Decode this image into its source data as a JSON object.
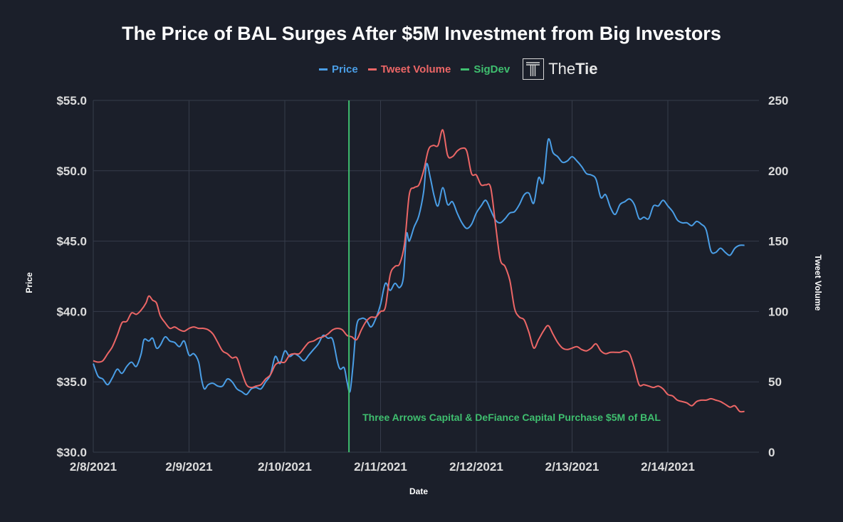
{
  "chart_data": {
    "type": "line",
    "title": "The Price of BAL Surges After $5M Investment from Big Investors",
    "xlabel": "Date",
    "ylabel": "Price",
    "y2label": "Tweet Volume",
    "x_ticks": [
      "2/8/2021",
      "2/9/2021",
      "2/10/2021",
      "2/11/2021",
      "2/12/2021",
      "2/13/2021",
      "2/14/2021"
    ],
    "x_range": [
      0,
      6.9
    ],
    "y_ticks": [
      "$30.0",
      "$35.0",
      "$40.0",
      "$45.0",
      "$50.0",
      "$55.0"
    ],
    "ylim": [
      30,
      55
    ],
    "y2_ticks": [
      "0",
      "50",
      "100",
      "150",
      "200",
      "250"
    ],
    "y2lim": [
      0,
      250
    ],
    "grid": true,
    "legend_placement": "top-center",
    "series": [
      {
        "name": "Price",
        "axis": "left",
        "color": "#4a9ee6",
        "points": [
          [
            0.0,
            36.3
          ],
          [
            0.05,
            35.4
          ],
          [
            0.1,
            35.2
          ],
          [
            0.15,
            34.8
          ],
          [
            0.2,
            35.3
          ],
          [
            0.25,
            35.9
          ],
          [
            0.3,
            35.6
          ],
          [
            0.35,
            36.1
          ],
          [
            0.4,
            36.4
          ],
          [
            0.45,
            36.1
          ],
          [
            0.5,
            37.0
          ],
          [
            0.53,
            38.0
          ],
          [
            0.58,
            37.9
          ],
          [
            0.62,
            38.1
          ],
          [
            0.66,
            37.4
          ],
          [
            0.7,
            37.6
          ],
          [
            0.75,
            38.2
          ],
          [
            0.8,
            37.9
          ],
          [
            0.85,
            37.8
          ],
          [
            0.9,
            37.5
          ],
          [
            0.95,
            37.9
          ],
          [
            1.0,
            36.9
          ],
          [
            1.05,
            37.0
          ],
          [
            1.1,
            36.4
          ],
          [
            1.13,
            35.2
          ],
          [
            1.16,
            34.5
          ],
          [
            1.2,
            34.8
          ],
          [
            1.25,
            34.9
          ],
          [
            1.3,
            34.7
          ],
          [
            1.35,
            34.7
          ],
          [
            1.4,
            35.2
          ],
          [
            1.45,
            35.0
          ],
          [
            1.5,
            34.5
          ],
          [
            1.55,
            34.3
          ],
          [
            1.6,
            34.1
          ],
          [
            1.65,
            34.5
          ],
          [
            1.7,
            34.6
          ],
          [
            1.75,
            34.5
          ],
          [
            1.8,
            35.0
          ],
          [
            1.85,
            35.5
          ],
          [
            1.9,
            36.8
          ],
          [
            1.95,
            36.3
          ],
          [
            2.0,
            37.2
          ],
          [
            2.05,
            36.8
          ],
          [
            2.1,
            37.0
          ],
          [
            2.15,
            36.8
          ],
          [
            2.2,
            36.5
          ],
          [
            2.25,
            36.9
          ],
          [
            2.3,
            37.3
          ],
          [
            2.35,
            37.7
          ],
          [
            2.4,
            38.3
          ],
          [
            2.45,
            38.1
          ],
          [
            2.5,
            38.0
          ],
          [
            2.55,
            36.4
          ],
          [
            2.58,
            35.9
          ],
          [
            2.62,
            36.0
          ],
          [
            2.65,
            35.0
          ],
          [
            2.68,
            34.3
          ],
          [
            2.71,
            36.0
          ],
          [
            2.75,
            39.0
          ],
          [
            2.8,
            39.5
          ],
          [
            2.85,
            39.4
          ],
          [
            2.9,
            38.9
          ],
          [
            2.95,
            39.5
          ],
          [
            3.0,
            40.5
          ],
          [
            3.05,
            42.0
          ],
          [
            3.1,
            41.5
          ],
          [
            3.15,
            42.0
          ],
          [
            3.2,
            41.7
          ],
          [
            3.24,
            42.5
          ],
          [
            3.27,
            45.5
          ],
          [
            3.3,
            45.0
          ],
          [
            3.35,
            46.0
          ],
          [
            3.4,
            46.8
          ],
          [
            3.45,
            48.5
          ],
          [
            3.48,
            50.5
          ],
          [
            3.52,
            49.5
          ],
          [
            3.56,
            48.2
          ],
          [
            3.6,
            47.5
          ],
          [
            3.65,
            48.8
          ],
          [
            3.7,
            47.6
          ],
          [
            3.75,
            47.8
          ],
          [
            3.8,
            47.0
          ],
          [
            3.85,
            46.3
          ],
          [
            3.9,
            45.9
          ],
          [
            3.95,
            46.2
          ],
          [
            4.0,
            47.0
          ],
          [
            4.05,
            47.5
          ],
          [
            4.1,
            47.9
          ],
          [
            4.15,
            47.2
          ],
          [
            4.2,
            46.5
          ],
          [
            4.25,
            46.3
          ],
          [
            4.3,
            46.6
          ],
          [
            4.35,
            47.0
          ],
          [
            4.4,
            47.1
          ],
          [
            4.45,
            47.6
          ],
          [
            4.5,
            48.3
          ],
          [
            4.55,
            48.4
          ],
          [
            4.6,
            47.7
          ],
          [
            4.65,
            49.5
          ],
          [
            4.7,
            49.2
          ],
          [
            4.75,
            52.2
          ],
          [
            4.8,
            51.3
          ],
          [
            4.85,
            51.0
          ],
          [
            4.9,
            50.6
          ],
          [
            4.95,
            50.7
          ],
          [
            5.0,
            51.0
          ],
          [
            5.05,
            50.7
          ],
          [
            5.1,
            50.3
          ],
          [
            5.15,
            49.8
          ],
          [
            5.2,
            49.7
          ],
          [
            5.25,
            49.4
          ],
          [
            5.3,
            48.1
          ],
          [
            5.35,
            48.3
          ],
          [
            5.4,
            47.4
          ],
          [
            5.45,
            46.9
          ],
          [
            5.5,
            47.6
          ],
          [
            5.55,
            47.8
          ],
          [
            5.6,
            48.0
          ],
          [
            5.65,
            47.6
          ],
          [
            5.7,
            46.6
          ],
          [
            5.75,
            46.7
          ],
          [
            5.8,
            46.6
          ],
          [
            5.85,
            47.5
          ],
          [
            5.9,
            47.5
          ],
          [
            5.95,
            47.9
          ],
          [
            6.0,
            47.5
          ],
          [
            6.05,
            47.1
          ],
          [
            6.1,
            46.5
          ],
          [
            6.15,
            46.3
          ],
          [
            6.2,
            46.3
          ],
          [
            6.25,
            46.1
          ],
          [
            6.3,
            46.4
          ],
          [
            6.35,
            46.2
          ],
          [
            6.4,
            45.8
          ],
          [
            6.45,
            44.3
          ],
          [
            6.5,
            44.2
          ],
          [
            6.55,
            44.5
          ],
          [
            6.6,
            44.2
          ],
          [
            6.65,
            44.0
          ],
          [
            6.7,
            44.5
          ],
          [
            6.75,
            44.7
          ],
          [
            6.8,
            44.7
          ]
        ]
      },
      {
        "name": "Tweet Volume",
        "axis": "right",
        "color": "#ec6666",
        "points": [
          [
            0.0,
            65
          ],
          [
            0.05,
            64
          ],
          [
            0.1,
            65
          ],
          [
            0.15,
            70
          ],
          [
            0.2,
            75
          ],
          [
            0.25,
            83
          ],
          [
            0.3,
            92
          ],
          [
            0.35,
            93
          ],
          [
            0.4,
            99
          ],
          [
            0.45,
            98
          ],
          [
            0.5,
            101
          ],
          [
            0.55,
            106
          ],
          [
            0.58,
            111
          ],
          [
            0.62,
            108
          ],
          [
            0.66,
            106
          ],
          [
            0.7,
            97
          ],
          [
            0.75,
            92
          ],
          [
            0.8,
            88
          ],
          [
            0.85,
            89
          ],
          [
            0.9,
            87
          ],
          [
            0.95,
            86
          ],
          [
            1.0,
            88
          ],
          [
            1.05,
            89
          ],
          [
            1.1,
            88
          ],
          [
            1.15,
            88
          ],
          [
            1.2,
            87
          ],
          [
            1.25,
            84
          ],
          [
            1.3,
            78
          ],
          [
            1.35,
            72
          ],
          [
            1.4,
            70
          ],
          [
            1.45,
            67
          ],
          [
            1.5,
            67
          ],
          [
            1.55,
            57
          ],
          [
            1.6,
            48
          ],
          [
            1.65,
            46
          ],
          [
            1.7,
            47
          ],
          [
            1.75,
            48
          ],
          [
            1.8,
            52
          ],
          [
            1.85,
            55
          ],
          [
            1.9,
            62
          ],
          [
            1.95,
            64
          ],
          [
            2.0,
            64
          ],
          [
            2.05,
            69
          ],
          [
            2.1,
            70
          ],
          [
            2.15,
            70
          ],
          [
            2.2,
            74
          ],
          [
            2.25,
            78
          ],
          [
            2.3,
            79
          ],
          [
            2.35,
            81
          ],
          [
            2.4,
            82
          ],
          [
            2.45,
            84
          ],
          [
            2.5,
            87
          ],
          [
            2.55,
            88
          ],
          [
            2.6,
            87
          ],
          [
            2.65,
            83
          ],
          [
            2.7,
            82
          ],
          [
            2.75,
            80
          ],
          [
            2.8,
            87
          ],
          [
            2.85,
            93
          ],
          [
            2.9,
            96
          ],
          [
            2.95,
            96
          ],
          [
            3.0,
            100
          ],
          [
            3.05,
            103
          ],
          [
            3.1,
            126
          ],
          [
            3.15,
            132
          ],
          [
            3.2,
            134
          ],
          [
            3.25,
            148
          ],
          [
            3.3,
            183
          ],
          [
            3.35,
            188
          ],
          [
            3.4,
            190
          ],
          [
            3.45,
            200
          ],
          [
            3.5,
            215
          ],
          [
            3.55,
            218
          ],
          [
            3.6,
            218
          ],
          [
            3.65,
            229
          ],
          [
            3.7,
            211
          ],
          [
            3.75,
            210
          ],
          [
            3.8,
            214
          ],
          [
            3.85,
            216
          ],
          [
            3.9,
            214
          ],
          [
            3.95,
            198
          ],
          [
            4.0,
            197
          ],
          [
            4.05,
            190
          ],
          [
            4.1,
            190
          ],
          [
            4.15,
            188
          ],
          [
            4.2,
            162
          ],
          [
            4.25,
            137
          ],
          [
            4.3,
            132
          ],
          [
            4.35,
            122
          ],
          [
            4.4,
            102
          ],
          [
            4.45,
            96
          ],
          [
            4.5,
            94
          ],
          [
            4.55,
            85
          ],
          [
            4.6,
            74
          ],
          [
            4.65,
            80
          ],
          [
            4.7,
            86
          ],
          [
            4.75,
            90
          ],
          [
            4.8,
            84
          ],
          [
            4.85,
            78
          ],
          [
            4.9,
            74
          ],
          [
            4.95,
            73
          ],
          [
            5.0,
            74
          ],
          [
            5.05,
            75
          ],
          [
            5.1,
            73
          ],
          [
            5.15,
            72
          ],
          [
            5.2,
            74
          ],
          [
            5.25,
            77
          ],
          [
            5.3,
            72
          ],
          [
            5.35,
            70
          ],
          [
            5.4,
            71
          ],
          [
            5.45,
            71
          ],
          [
            5.5,
            71
          ],
          [
            5.55,
            72
          ],
          [
            5.6,
            70
          ],
          [
            5.65,
            60
          ],
          [
            5.7,
            48
          ],
          [
            5.75,
            48
          ],
          [
            5.8,
            47
          ],
          [
            5.85,
            46
          ],
          [
            5.9,
            47
          ],
          [
            5.95,
            45
          ],
          [
            6.0,
            41
          ],
          [
            6.05,
            40
          ],
          [
            6.1,
            37
          ],
          [
            6.15,
            36
          ],
          [
            6.2,
            35
          ],
          [
            6.25,
            33
          ],
          [
            6.3,
            36
          ],
          [
            6.35,
            37
          ],
          [
            6.4,
            37
          ],
          [
            6.45,
            38
          ],
          [
            6.5,
            37
          ],
          [
            6.55,
            36
          ],
          [
            6.6,
            34
          ],
          [
            6.65,
            32
          ],
          [
            6.7,
            33
          ],
          [
            6.75,
            29
          ],
          [
            6.8,
            29
          ]
        ]
      }
    ],
    "sigdev": {
      "name": "SigDev",
      "x": 2.67,
      "color": "#3fbf6f",
      "annotation": "Three Arrows Capital & DeFiance Capital Purchase $5M of BAL"
    }
  },
  "legend": {
    "items": [
      {
        "label": "Price",
        "color": "#4a9ee6"
      },
      {
        "label": "Tweet Volume",
        "color": "#ec6666"
      },
      {
        "label": "SigDev",
        "color": "#3fbf6f"
      }
    ],
    "brand": {
      "prefix": "The",
      "suffix": "Tie"
    }
  },
  "colors": {
    "background": "#1b1f2a",
    "grid": "#363c4a"
  }
}
